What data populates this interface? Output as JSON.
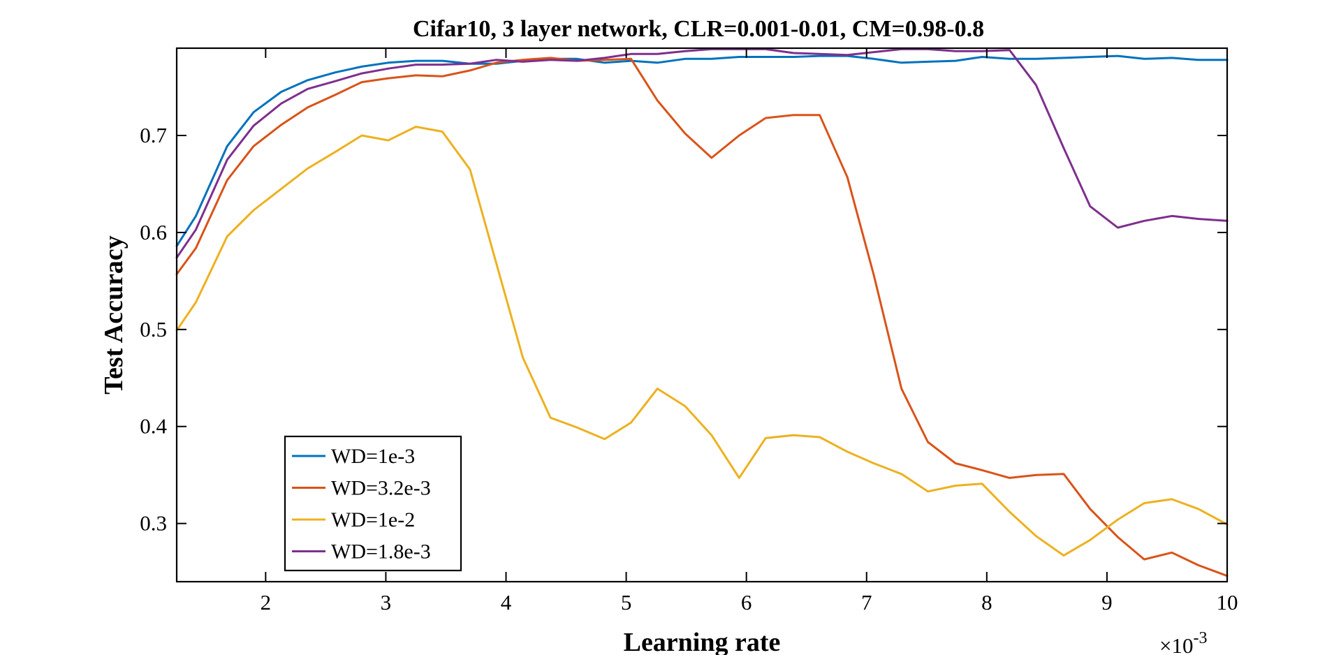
{
  "chart_data": {
    "type": "line",
    "title": "Cifar10, 3 layer network, CLR=0.001-0.01, CM=0.98-0.8",
    "xlabel": "Learning rate",
    "ylabel": "Test Accuracy",
    "x_exponent_base": "×10",
    "x_exponent_power": "-3",
    "xlim": [
      1.26,
      10
    ],
    "ylim": [
      0.24,
      0.79
    ],
    "xticks": [
      2,
      3,
      4,
      5,
      6,
      7,
      8,
      9,
      10
    ],
    "xtick_labels": [
      "2",
      "3",
      "4",
      "5",
      "6",
      "7",
      "8",
      "9",
      "10"
    ],
    "yticks": [
      0.3,
      0.4,
      0.5,
      0.6,
      0.7
    ],
    "ytick_labels": [
      "0.3",
      "0.4",
      "0.5",
      "0.6",
      "0.7"
    ],
    "grid": false,
    "legend_position": "bottom-left",
    "x": [
      1.26,
      1.42,
      1.68,
      1.9,
      2.13,
      2.35,
      2.58,
      2.8,
      3.02,
      3.25,
      3.47,
      3.7,
      3.92,
      4.14,
      4.37,
      4.59,
      4.82,
      5.04,
      5.26,
      5.49,
      5.71,
      5.94,
      6.16,
      6.39,
      6.61,
      6.84,
      7.06,
      7.29,
      7.51,
      7.74,
      7.96,
      8.19,
      8.41,
      8.64,
      8.86,
      9.09,
      9.31,
      9.54,
      9.76,
      10.0
    ],
    "series": [
      {
        "name": "WD=1e-3",
        "color": "#0072BD",
        "values": [
          0.586,
          0.617,
          0.689,
          0.724,
          0.745,
          0.757,
          0.765,
          0.771,
          0.775,
          0.777,
          0.777,
          0.774,
          0.774,
          0.777,
          0.779,
          0.779,
          0.775,
          0.777,
          0.775,
          0.779,
          0.779,
          0.781,
          0.781,
          0.781,
          0.782,
          0.782,
          0.779,
          0.775,
          0.776,
          0.777,
          0.781,
          0.779,
          0.779,
          0.78,
          0.781,
          0.782,
          0.779,
          0.78,
          0.778,
          0.778
        ]
      },
      {
        "name": "WD=3.2e-3",
        "color": "#D95319",
        "values": [
          0.557,
          0.584,
          0.654,
          0.689,
          0.711,
          0.729,
          0.742,
          0.755,
          0.759,
          0.762,
          0.761,
          0.767,
          0.775,
          0.778,
          0.78,
          0.777,
          0.778,
          0.779,
          0.736,
          0.702,
          0.677,
          0.7,
          0.718,
          0.721,
          0.721,
          0.657,
          0.556,
          0.439,
          0.384,
          0.362,
          0.355,
          0.347,
          0.35,
          0.351,
          0.315,
          0.286,
          0.263,
          0.27,
          0.257,
          0.246
        ]
      },
      {
        "name": "WD=1e-2",
        "color": "#EDB120",
        "values": [
          0.499,
          0.528,
          0.596,
          0.623,
          0.645,
          0.666,
          0.683,
          0.7,
          0.695,
          0.709,
          0.704,
          0.665,
          0.568,
          0.471,
          0.409,
          0.399,
          0.387,
          0.404,
          0.439,
          0.421,
          0.391,
          0.347,
          0.388,
          0.391,
          0.389,
          0.374,
          0.362,
          0.351,
          0.333,
          0.339,
          0.341,
          0.312,
          0.287,
          0.267,
          0.283,
          0.304,
          0.321,
          0.325,
          0.315,
          0.299
        ]
      },
      {
        "name": "WD=1.8e-3",
        "color": "#7E2F8E",
        "values": [
          0.574,
          0.603,
          0.675,
          0.71,
          0.733,
          0.748,
          0.756,
          0.764,
          0.769,
          0.773,
          0.773,
          0.774,
          0.778,
          0.776,
          0.778,
          0.777,
          0.78,
          0.784,
          0.784,
          0.787,
          0.789,
          0.789,
          0.789,
          0.785,
          0.784,
          0.783,
          0.786,
          0.789,
          0.789,
          0.787,
          0.787,
          0.788,
          0.752,
          0.687,
          0.627,
          0.605,
          0.612,
          0.617,
          0.614,
          0.612
        ]
      }
    ]
  }
}
